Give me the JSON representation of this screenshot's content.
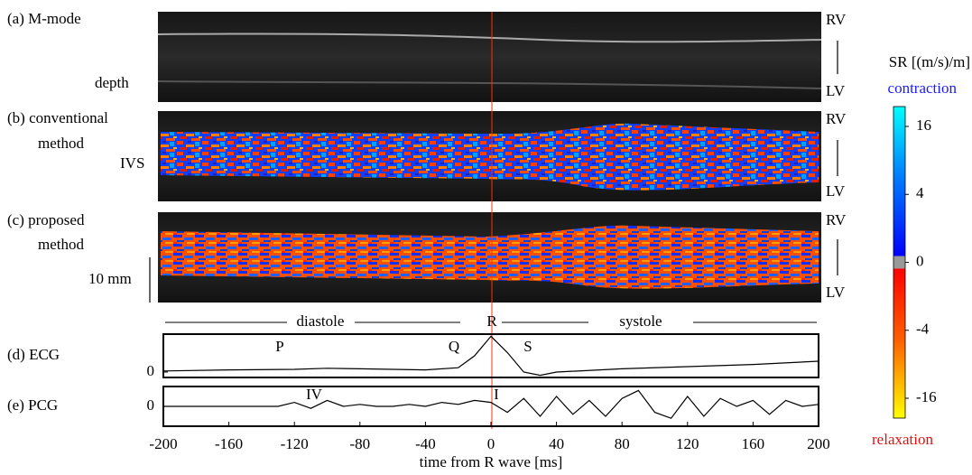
{
  "panels": {
    "a": {
      "label": "(a) M-mode",
      "depth": "depth",
      "rv": "RV",
      "lv": "LV"
    },
    "b": {
      "label": "(b) conventional",
      "label2": "method",
      "ivs": "IVS",
      "rv": "RV",
      "lv": "LV"
    },
    "c": {
      "label": "(c) proposed",
      "label2": "method",
      "scale": "10 mm",
      "rv": "RV",
      "lv": "LV"
    },
    "phases": {
      "diastole": "diastole",
      "r": "R",
      "systole": "systole"
    }
  },
  "chart_data": [
    {
      "type": "line",
      "title": "(d) ECG",
      "color": "#000000",
      "x": [
        -200,
        -160,
        -120,
        -100,
        -80,
        -40,
        -20,
        -10,
        0,
        10,
        20,
        30,
        40,
        80,
        120,
        160,
        200
      ],
      "values": [
        0.1,
        0.2,
        0.25,
        0.35,
        0.3,
        0.2,
        0.4,
        1.5,
        3.3,
        1.8,
        0,
        -0.3,
        0,
        0.3,
        0.5,
        0.7,
        1.0
      ],
      "xlim": [
        -200,
        200
      ],
      "ylim": [
        -0.5,
        3.5
      ],
      "yticks": [
        0
      ],
      "annotations": [
        "P",
        "Q",
        "S"
      ]
    },
    {
      "type": "line",
      "title": "(e) PCG",
      "color": "#000000",
      "x": [
        -200,
        -190,
        -180,
        -170,
        -160,
        -150,
        -140,
        -130,
        -120,
        -110,
        -100,
        -90,
        -80,
        -70,
        -60,
        -50,
        -40,
        -30,
        -20,
        -10,
        0,
        10,
        20,
        30,
        40,
        50,
        60,
        70,
        80,
        90,
        100,
        110,
        120,
        130,
        140,
        150,
        160,
        170,
        180,
        190,
        200
      ],
      "values": [
        0,
        0,
        0,
        0,
        0,
        0,
        0,
        0,
        0.2,
        -0.1,
        0.3,
        0,
        0.1,
        0,
        0,
        0.1,
        0,
        0.2,
        0.1,
        0.3,
        0.2,
        -0.3,
        0.4,
        -0.5,
        0.5,
        -0.4,
        0.3,
        -0.5,
        0.4,
        0.8,
        -0.3,
        -0.6,
        0.5,
        -0.5,
        0.4,
        0,
        0.3,
        -0.4,
        0.3,
        0,
        0.1
      ],
      "xlim": [
        -200,
        200
      ],
      "ylim": [
        -1,
        1
      ],
      "yticks": [
        0
      ],
      "xticks": [
        -200,
        -160,
        -120,
        -80,
        -40,
        0,
        40,
        80,
        120,
        160,
        200
      ],
      "xlabel": "time from R wave [ms]",
      "annotations": [
        "IV",
        "I"
      ]
    },
    {
      "type": "colorbar",
      "title": "SR [(m/s)/m]",
      "top_label": "contraction",
      "bottom_label": "relaxation",
      "ticks": [
        16,
        4,
        0,
        -4,
        -16
      ]
    }
  ]
}
